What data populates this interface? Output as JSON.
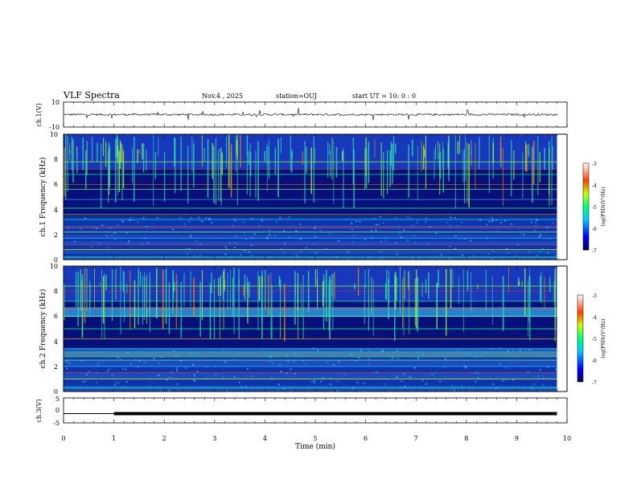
{
  "header": {
    "title": "VLF Spectra",
    "date": "Nov.4 , 2025",
    "station": "station=OUJ",
    "start": "start UT = 10: 0 : 0"
  },
  "colorbar_label": "log(PSD)(V²/Hz)",
  "colors": {
    "trace": "#000000",
    "spec_low": "#00007a",
    "spec_mid": "#00cfff",
    "spec_high": "#ff2000"
  },
  "chart_data": [
    {
      "type": "line",
      "name": "ch1-waveform",
      "ylabel": "ch.1(V)",
      "ylim": [
        -10,
        10
      ],
      "yticks": [
        "10",
        "-10"
      ],
      "baseline": 0,
      "xlim": [
        0,
        10
      ]
    },
    {
      "type": "heatmap",
      "name": "ch1-spectrogram",
      "ylabel": "ch.1 Frequency (kHz)",
      "yticks": [
        "0",
        "2",
        "4",
        "6",
        "8",
        "10"
      ],
      "ylim": [
        0,
        10
      ],
      "xlim": [
        0,
        10
      ],
      "data_extent_min": 9.8,
      "colorbar": {
        "range": [
          -7,
          -3
        ],
        "ticks": [
          "-3",
          "-4",
          "-5",
          "-6",
          "-7"
        ],
        "label": "log(PSD)(V²/Hz)"
      }
    },
    {
      "type": "heatmap",
      "name": "ch2-spectrogram",
      "ylabel": "ch.2 Frequency (kHz)",
      "yticks": [
        "0",
        "2",
        "4",
        "6",
        "8",
        "10"
      ],
      "ylim": [
        0,
        10
      ],
      "xlim": [
        0,
        10
      ],
      "data_extent_min": 9.8,
      "colorbar": {
        "range": [
          -7,
          -3
        ],
        "ticks": [
          "-3",
          "-4",
          "-5",
          "-6",
          "-7"
        ],
        "label": "log(PSD)(V²/Hz)"
      }
    },
    {
      "type": "line",
      "name": "ch3-signal",
      "ylabel": "ch.3(V)",
      "ylim": [
        -5,
        5
      ],
      "yticks": [
        "5",
        "0",
        "-5"
      ],
      "level": -1.3,
      "thick_from_min": 1.0,
      "xlim": [
        0,
        10
      ]
    }
  ],
  "xaxis": {
    "label": "Time (min)",
    "ticks": [
      "0",
      "1",
      "2",
      "3",
      "4",
      "5",
      "6",
      "7",
      "8",
      "9",
      "10"
    ]
  }
}
